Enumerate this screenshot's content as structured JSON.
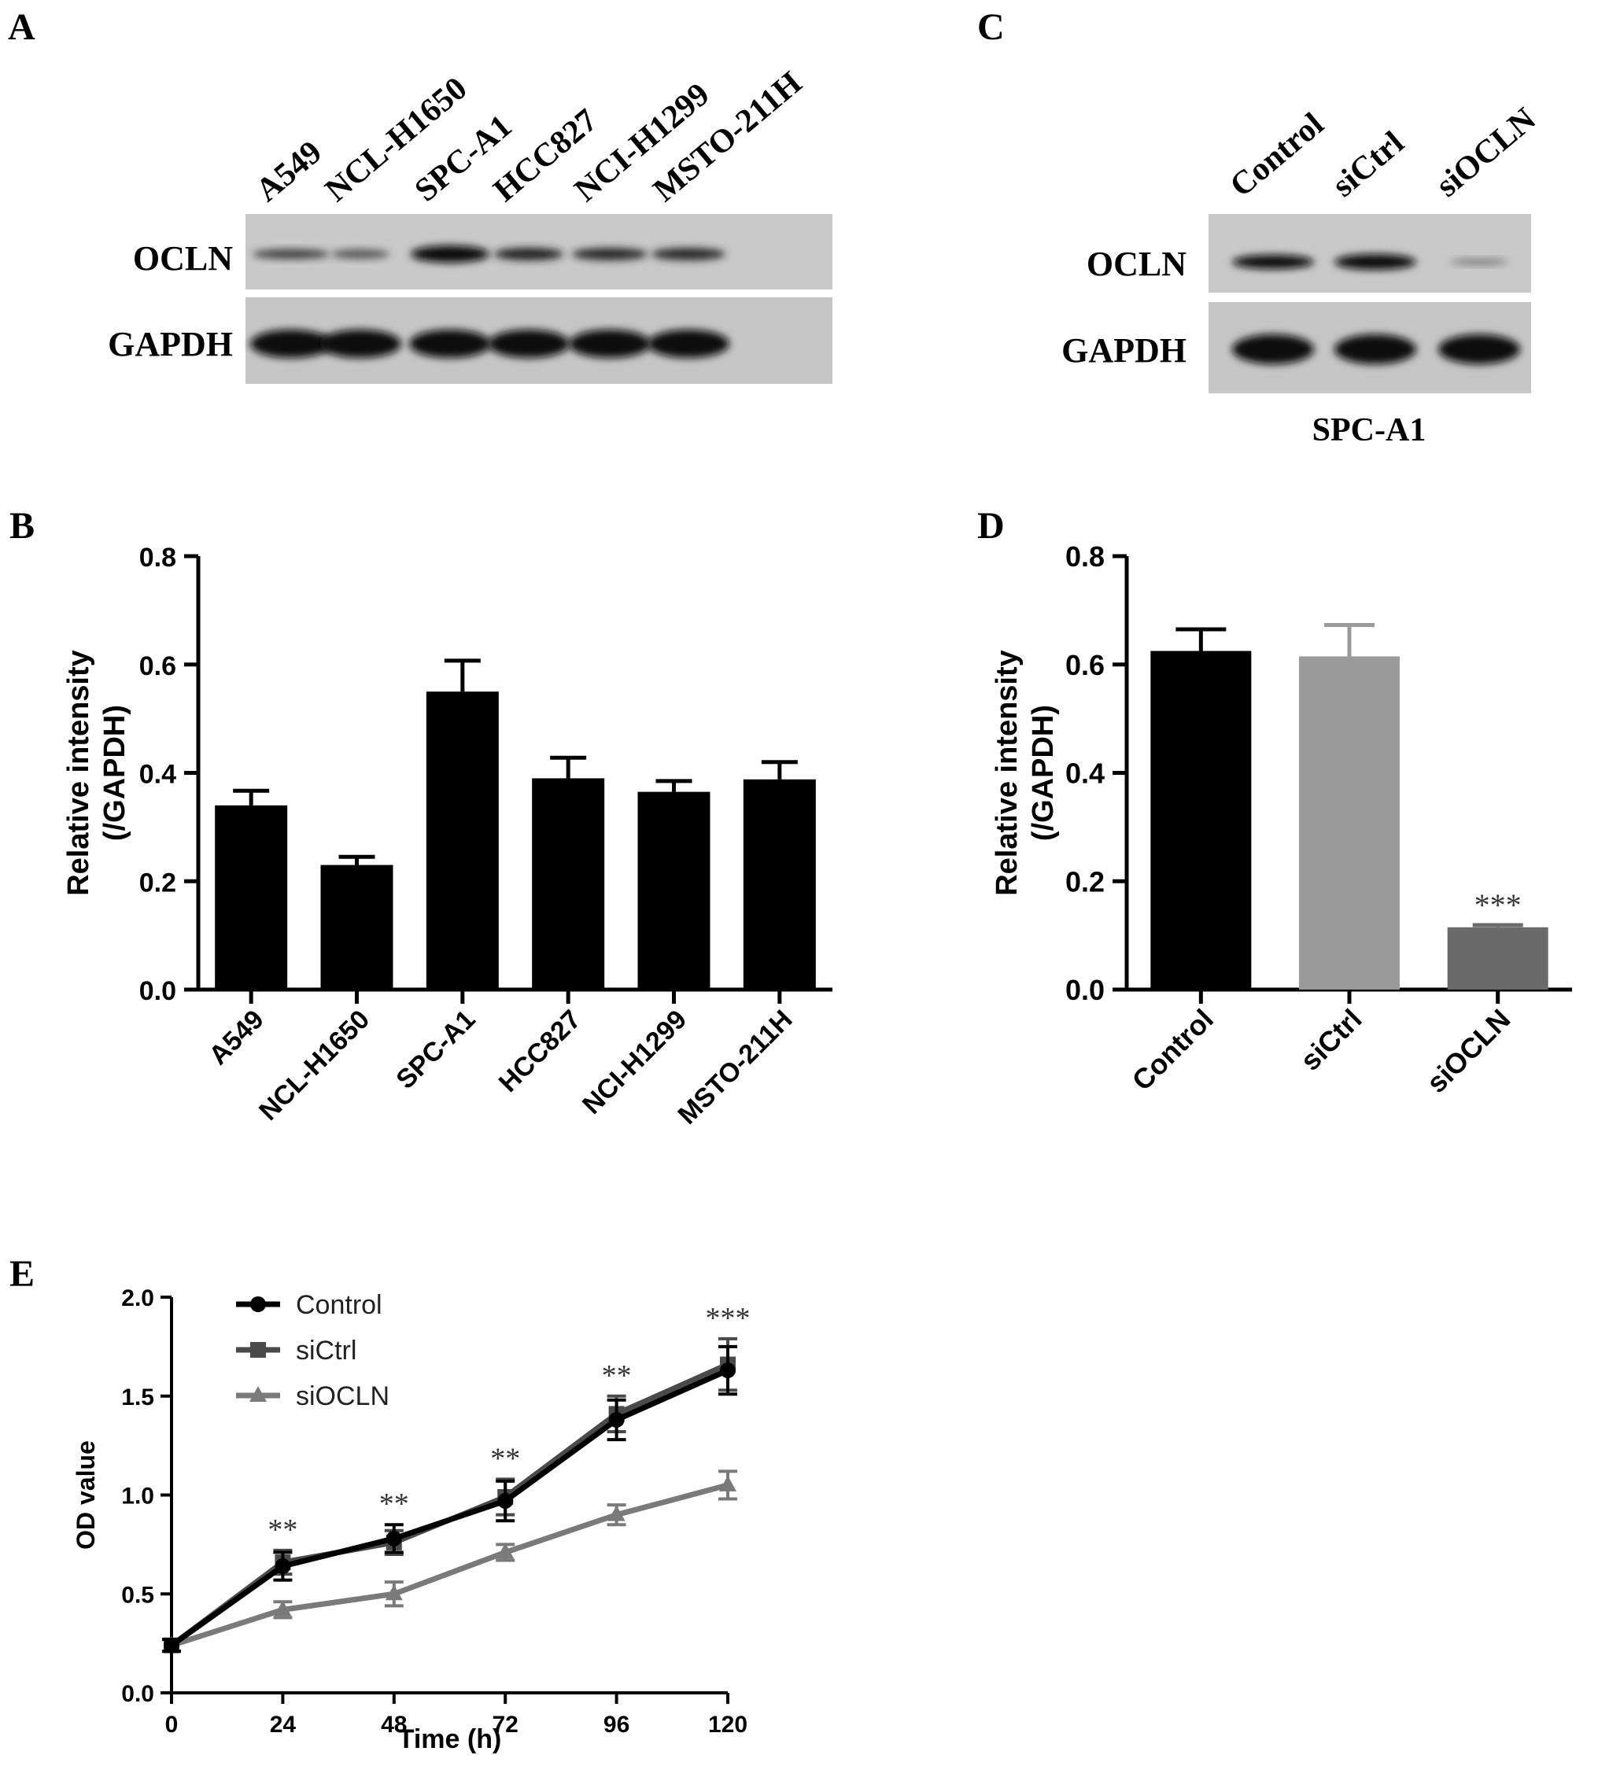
{
  "panels": {
    "A": "A",
    "B": "B",
    "C": "C",
    "D": "D",
    "E": "E"
  },
  "blot_A": {
    "lanes": [
      "A549",
      "NCL-H1650",
      "SPC-A1",
      "HCC827",
      "NCI-H1299",
      "MSTO-211H"
    ],
    "rows": [
      "OCLN",
      "GAPDH"
    ]
  },
  "blot_C": {
    "lanes": [
      "Control",
      "siCtrl",
      "siOCLN"
    ],
    "rows": [
      "OCLN",
      "GAPDH"
    ],
    "caption": "SPC-A1"
  },
  "chart_data": [
    {
      "panel": "B",
      "type": "bar",
      "categories": [
        "A549",
        "NCL-H1650",
        "SPC-A1",
        "HCC827",
        "NCI-H1299",
        "MSTO-211H"
      ],
      "values": [
        0.34,
        0.23,
        0.55,
        0.39,
        0.365,
        0.388
      ],
      "errors": [
        0.027,
        0.015,
        0.057,
        0.038,
        0.02,
        0.032
      ],
      "ylabel": "Relative intensity",
      "ylabel2": "(/GAPDH)",
      "ylim": [
        0,
        0.8
      ],
      "yticks": [
        "0.0",
        "0.2",
        "0.4",
        "0.6",
        "0.8"
      ],
      "colors": [
        "#000000",
        "#000000",
        "#000000",
        "#000000",
        "#000000",
        "#000000"
      ]
    },
    {
      "panel": "D",
      "type": "bar",
      "categories": [
        "Control",
        "siCtrl",
        "siOCLN"
      ],
      "values": [
        0.625,
        0.615,
        0.115
      ],
      "errors": [
        0.04,
        0.058,
        0.004
      ],
      "annotations": [
        "",
        "",
        "***"
      ],
      "ylabel": "Relative intensity",
      "ylabel2": "(/GAPDH)",
      "ylim": [
        0,
        0.8
      ],
      "yticks": [
        "0.0",
        "0.2",
        "0.4",
        "0.6",
        "0.8"
      ],
      "colors": [
        "#000000",
        "#9a9a9a",
        "#6a6a6a"
      ]
    },
    {
      "panel": "E",
      "type": "line",
      "x": [
        0,
        24,
        48,
        72,
        96,
        120
      ],
      "xticks": [
        "0",
        "24",
        "48",
        "72",
        "96",
        "120"
      ],
      "xlabel": "Time (h)",
      "ylabel": "OD value",
      "ylim": [
        0,
        2.0
      ],
      "yticks": [
        "0.0",
        "0.5",
        "1.0",
        "1.5",
        "2.0"
      ],
      "series": [
        {
          "name": "Control",
          "values": [
            0.24,
            0.64,
            0.78,
            0.97,
            1.38,
            1.63
          ],
          "errors": [
            0.03,
            0.07,
            0.07,
            0.1,
            0.1,
            0.12
          ],
          "color": "#000000",
          "marker": "circle"
        },
        {
          "name": "siCtrl",
          "values": [
            0.24,
            0.66,
            0.76,
            0.99,
            1.41,
            1.66
          ],
          "errors": [
            0.03,
            0.06,
            0.06,
            0.09,
            0.09,
            0.13
          ],
          "color": "#4a4a4a",
          "marker": "square"
        },
        {
          "name": "siOCLN",
          "values": [
            0.24,
            0.42,
            0.5,
            0.71,
            0.9,
            1.05
          ],
          "errors": [
            0.03,
            0.04,
            0.06,
            0.04,
            0.05,
            0.07
          ],
          "color": "#7a7a7a",
          "marker": "triangle"
        }
      ],
      "annotations": [
        "",
        "**",
        "**",
        "**",
        "**",
        "***"
      ],
      "legend": "top-left"
    }
  ]
}
